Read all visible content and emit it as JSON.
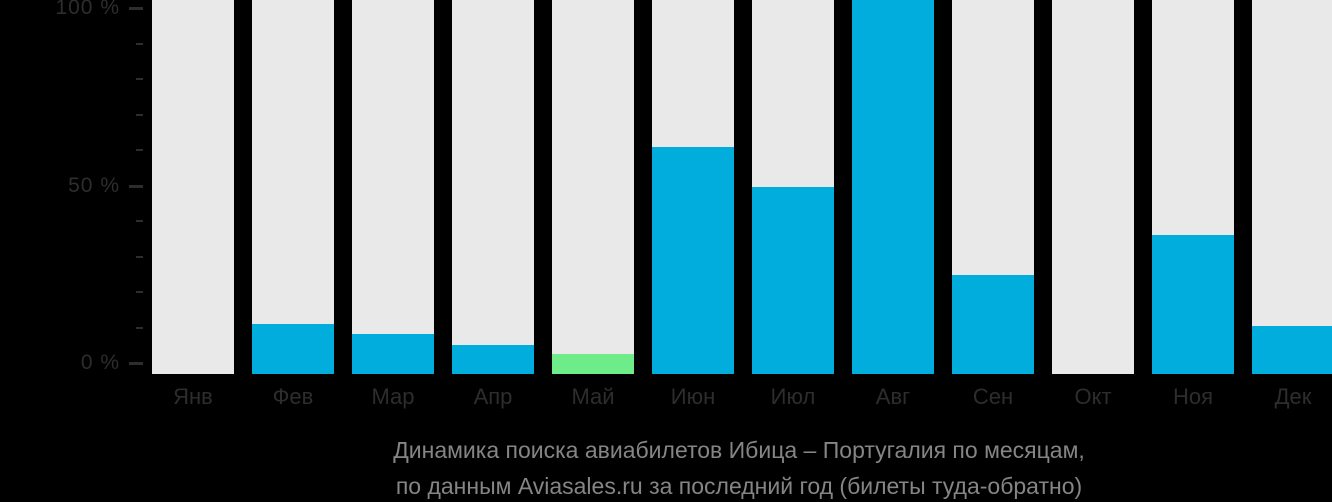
{
  "chart_data": {
    "type": "bar",
    "title_line1": "Динамика поиска авиабилетов Ибица – Португалия по месяцам,",
    "title_line2": "по данным Aviasales.ru за последний год (билеты туда-обратно)",
    "categories": [
      "Янв",
      "Фев",
      "Мар",
      "Апр",
      "Май",
      "Июн",
      "Июл",
      "Авг",
      "Сен",
      "Окт",
      "Ноя",
      "Дек"
    ],
    "values": [
      0,
      13.5,
      11,
      8,
      5.5,
      62,
      51,
      102,
      27,
      0,
      38,
      13
    ],
    "highlight_index": 4,
    "xlabel": "",
    "ylabel": "",
    "ylim": [
      0,
      102
    ],
    "grid": false,
    "legend": "none",
    "yaxis": {
      "major_ticks": [
        100,
        50,
        0
      ],
      "major_labels": [
        "100 %",
        "50 %",
        "0 %"
      ],
      "minor_ticks": [
        90,
        80,
        70,
        60,
        40,
        30,
        20,
        10
      ]
    },
    "colors": {
      "bar": "#00addd",
      "highlight": "#6eec8a",
      "track": "#e9e9e9",
      "axis_text": "#2d2d2d",
      "caption_text": "#858585",
      "background": "#000000"
    }
  }
}
